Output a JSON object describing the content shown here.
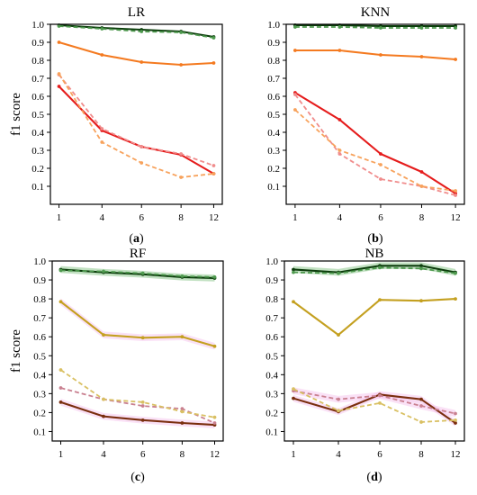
{
  "figure": {
    "label": "Four f1-score line charts"
  },
  "chart_data": [
    {
      "type": "line",
      "title": "LR",
      "caption": "(a)",
      "ylabel": "f1 score",
      "xlabel": "",
      "x": [
        1,
        4,
        6,
        8,
        12
      ],
      "ylim": [
        0.0,
        1.0
      ],
      "yticks": [
        "0.1",
        "0.2",
        "0.3",
        "0.4",
        "0.5",
        "0.6",
        "0.7",
        "0.8",
        "0.9",
        "1.0"
      ],
      "show_ylabel": true,
      "grid": false,
      "series": [
        {
          "color": "#0c3d0c",
          "dash": false,
          "band": "",
          "values": [
            0.995,
            0.98,
            0.97,
            0.96,
            0.93
          ]
        },
        {
          "color": "#4f9a4f",
          "dash": true,
          "band": "",
          "values": [
            0.99,
            0.975,
            0.96,
            0.955,
            0.925
          ]
        },
        {
          "color": "#f47a20",
          "dash": false,
          "band": "",
          "values": [
            0.9,
            0.83,
            0.79,
            0.775,
            0.785
          ]
        },
        {
          "color": "#e51c1c",
          "dash": false,
          "band": "",
          "values": [
            0.655,
            0.41,
            0.32,
            0.275,
            0.17
          ]
        },
        {
          "color": "#f08c8c",
          "dash": true,
          "band": "",
          "values": [
            0.72,
            0.42,
            0.32,
            0.28,
            0.215
          ]
        },
        {
          "color": "#f7a25c",
          "dash": true,
          "band": "",
          "values": [
            0.725,
            0.345,
            0.23,
            0.15,
            0.17
          ]
        }
      ]
    },
    {
      "type": "line",
      "title": "KNN",
      "caption": "(b)",
      "ylabel": "",
      "xlabel": "",
      "x": [
        1,
        4,
        6,
        8,
        12
      ],
      "ylim": [
        0.0,
        1.0
      ],
      "yticks": [
        "0.1",
        "0.2",
        "0.3",
        "0.4",
        "0.5",
        "0.6",
        "0.7",
        "0.8",
        "0.9",
        "1.0"
      ],
      "show_ylabel": false,
      "grid": false,
      "series": [
        {
          "color": "#0c3d0c",
          "dash": false,
          "band": "",
          "values": [
            0.995,
            0.995,
            0.99,
            0.99,
            0.99
          ]
        },
        {
          "color": "#4f9a4f",
          "dash": true,
          "band": "",
          "values": [
            0.985,
            0.985,
            0.98,
            0.98,
            0.98
          ]
        },
        {
          "color": "#f47a20",
          "dash": false,
          "band": "",
          "values": [
            0.855,
            0.855,
            0.83,
            0.82,
            0.805
          ]
        },
        {
          "color": "#e51c1c",
          "dash": false,
          "band": "",
          "values": [
            0.62,
            0.47,
            0.28,
            0.18,
            0.06
          ]
        },
        {
          "color": "#f08c8c",
          "dash": true,
          "band": "",
          "values": [
            0.61,
            0.28,
            0.14,
            0.1,
            0.05
          ]
        },
        {
          "color": "#f7a25c",
          "dash": true,
          "band": "",
          "values": [
            0.525,
            0.3,
            0.22,
            0.1,
            0.075
          ]
        }
      ]
    },
    {
      "type": "line",
      "title": "RF",
      "caption": "(c)",
      "ylabel": "f1 score",
      "xlabel": "",
      "x": [
        1,
        4,
        6,
        8,
        12
      ],
      "ylim": [
        0.05,
        1.0
      ],
      "yticks": [
        "0.1",
        "0.2",
        "0.3",
        "0.4",
        "0.5",
        "0.6",
        "0.7",
        "0.8",
        "0.9",
        "1.0"
      ],
      "show_ylabel": true,
      "grid": false,
      "series": [
        {
          "color": "#0c3d0c",
          "dash": false,
          "band": "#8fc98f",
          "values": [
            0.955,
            0.94,
            0.93,
            0.915,
            0.91
          ]
        },
        {
          "color": "#4f9a4f",
          "dash": true,
          "band": "",
          "values": [
            0.95,
            0.945,
            0.935,
            0.92,
            0.915
          ]
        },
        {
          "color": "#c4a020",
          "dash": false,
          "band": "#f6c8ef",
          "values": [
            0.785,
            0.61,
            0.595,
            0.6,
            0.55
          ]
        },
        {
          "color": "#7a2e0e",
          "dash": false,
          "band": "#f6c8ef",
          "values": [
            0.255,
            0.18,
            0.16,
            0.145,
            0.135
          ]
        },
        {
          "color": "#c98090",
          "dash": true,
          "band": "",
          "values": [
            0.33,
            0.27,
            0.235,
            0.22,
            0.145
          ]
        },
        {
          "color": "#d9c063",
          "dash": true,
          "band": "",
          "values": [
            0.425,
            0.27,
            0.255,
            0.205,
            0.175
          ]
        }
      ]
    },
    {
      "type": "line",
      "title": "NB",
      "caption": "(d)",
      "ylabel": "",
      "xlabel": "",
      "x": [
        1,
        4,
        6,
        8,
        12
      ],
      "ylim": [
        0.05,
        1.0
      ],
      "yticks": [
        "0.1",
        "0.2",
        "0.3",
        "0.4",
        "0.5",
        "0.6",
        "0.7",
        "0.8",
        "0.9",
        "1.0"
      ],
      "show_ylabel": false,
      "grid": false,
      "series": [
        {
          "color": "#0c3d0c",
          "dash": false,
          "band": "#8fc98f",
          "values": [
            0.955,
            0.94,
            0.975,
            0.975,
            0.94
          ]
        },
        {
          "color": "#4f9a4f",
          "dash": true,
          "band": "",
          "values": [
            0.94,
            0.935,
            0.965,
            0.96,
            0.935
          ]
        },
        {
          "color": "#c4a020",
          "dash": false,
          "band": "",
          "values": [
            0.785,
            0.61,
            0.795,
            0.79,
            0.8
          ]
        },
        {
          "color": "#7a2e0e",
          "dash": false,
          "band": "#f6c8ef",
          "values": [
            0.275,
            0.205,
            0.295,
            0.27,
            0.145
          ]
        },
        {
          "color": "#c98090",
          "dash": true,
          "band": "#f6c8ef",
          "values": [
            0.315,
            0.27,
            0.29,
            0.235,
            0.195
          ]
        },
        {
          "color": "#d9c063",
          "dash": true,
          "band": "",
          "values": [
            0.325,
            0.21,
            0.25,
            0.15,
            0.16
          ]
        }
      ]
    }
  ]
}
